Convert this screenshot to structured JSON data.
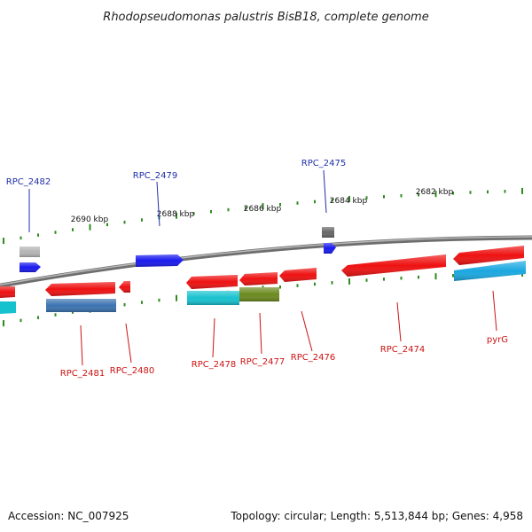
{
  "title": "Rhodopseudomonas palustris BisB18, complete genome",
  "accession": "Accession: NC_007925",
  "summary": "Topology: circular; Length: 5,513,844 bp; Genes: 4,958",
  "colors": {
    "backbone": "#8a8a8a",
    "tick": "#2e8b1e",
    "label_forward": "#1f2fa8",
    "label_reverse": "#cc1111",
    "red_gene": "#ee1111",
    "blue_gene": "#1a1aee",
    "gray_gene": "#b4b4b4",
    "dark_gray_gene": "#666666",
    "cyan": "#17c2cf",
    "sky": "#1aa8e0",
    "steel": "#3b73b0",
    "olive": "#6b8a1f"
  },
  "kbp_labels": [
    "2690 kbp",
    "2688 kbp",
    "2686 kbp",
    "2684 kbp",
    "2682 kbp"
  ],
  "forward_labels": [
    "RPC_2482",
    "RPC_2479",
    "RPC_2475"
  ],
  "reverse_labels": [
    "RPC_2481",
    "RPC_2480",
    "RPC_2478",
    "RPC_2477",
    "RPC_2476",
    "RPC_2474",
    "pyrG"
  ]
}
